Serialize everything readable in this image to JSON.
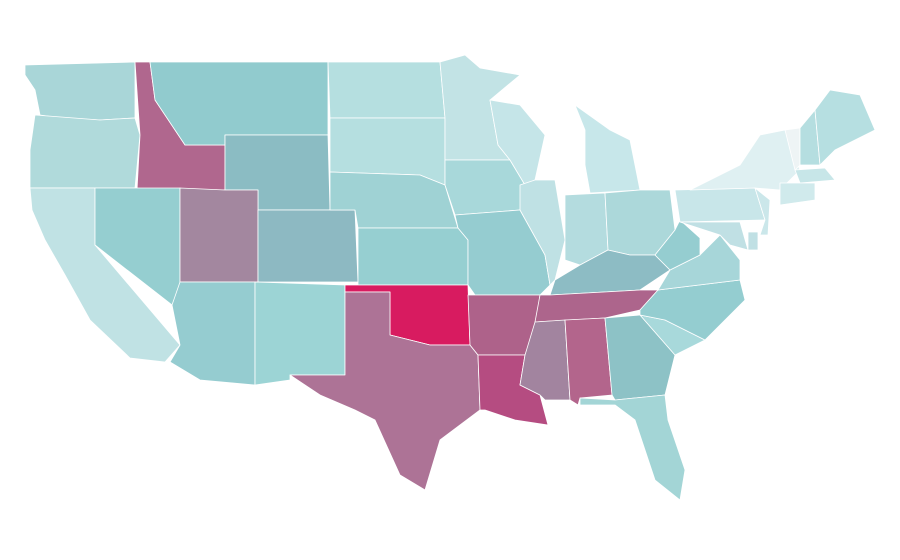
{
  "map": {
    "regions": [
      {
        "color": "#a9d6d8"
      },
      {
        "color": "#b0dadb"
      },
      {
        "color": "#c0e2e4"
      },
      {
        "color": "#b0678e"
      },
      {
        "color": "#91cbce"
      },
      {
        "color": "#8bbcc3"
      },
      {
        "color": "#95ced0"
      },
      {
        "color": "#a3879f"
      },
      {
        "color": "#8db9c2"
      },
      {
        "color": "#95ccd0"
      },
      {
        "color": "#9cd4d5"
      },
      {
        "color": "#b5dfe0"
      },
      {
        "color": "#b5dfe0"
      },
      {
        "color": "#9fd2d4"
      },
      {
        "color": "#96cfd1"
      },
      {
        "color": "#d81b60"
      },
      {
        "color": "#ad7396"
      },
      {
        "color": "#c2e3e5"
      },
      {
        "color": "#a8d8da"
      },
      {
        "color": "#95ccd0"
      },
      {
        "color": "#ae628a"
      },
      {
        "color": "#b54c81"
      },
      {
        "color": "#c5e5e8"
      },
      {
        "color": "#bfe1e4"
      },
      {
        "color": "#c7e7ea"
      },
      {
        "color": "#b4dcdf"
      },
      {
        "color": "#acd8da"
      },
      {
        "color": "#8dbcc4"
      },
      {
        "color": "#ad658c"
      },
      {
        "color": "#a2849f"
      },
      {
        "color": "#b3658c"
      },
      {
        "color": "#8dc2c6"
      },
      {
        "color": "#a3d5d6"
      },
      {
        "color": "#a8d9db"
      },
      {
        "color": "#94cdd0"
      },
      {
        "color": "#a7d6d9"
      },
      {
        "color": "#95cdd0"
      },
      {
        "color": "#c8e6e9"
      },
      {
        "color": "#dff0f2"
      },
      {
        "color": "#c0e0e4"
      },
      {
        "color": "#cbe7ea"
      },
      {
        "color": "#eef4f5"
      },
      {
        "color": "#b5dee0"
      },
      {
        "color": "#b6dfe1"
      },
      {
        "color": "#c7e6e8"
      },
      {
        "color": "#d0eaec"
      },
      {
        "color": "#c0e0e4"
      }
    ]
  }
}
